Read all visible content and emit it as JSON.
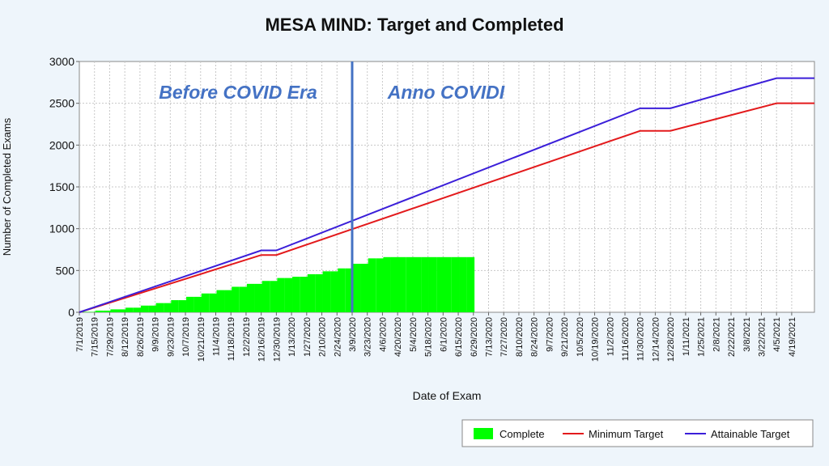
{
  "chart_data": {
    "type": "bar",
    "title": "MESA MIND: Target and Completed",
    "xlabel": "Date of Exam",
    "ylabel": "Number of Completed Exams",
    "ylim": [
      0,
      3000
    ],
    "yticks": [
      0,
      500,
      1000,
      1500,
      2000,
      2500,
      3000
    ],
    "xlim": [
      "2019-07-01",
      "2021-05-10"
    ],
    "categories": [
      "7/1/2019",
      "7/15/2019",
      "7/29/2019",
      "8/12/2019",
      "8/26/2019",
      "9/9/2019",
      "9/23/2019",
      "10/7/2019",
      "10/21/2019",
      "11/4/2019",
      "11/18/2019",
      "12/2/2019",
      "12/16/2019",
      "12/30/2019",
      "1/13/2020",
      "1/27/2020",
      "2/10/2020",
      "2/24/2020",
      "3/9/2020",
      "3/23/2020",
      "4/6/2020",
      "4/20/2020",
      "5/4/2020",
      "5/18/2020",
      "6/1/2020",
      "6/15/2020",
      "6/29/2020",
      "7/13/2020",
      "7/27/2020",
      "8/10/2020",
      "8/24/2020",
      "9/7/2020",
      "9/21/2020",
      "10/5/2020",
      "10/19/2020",
      "11/2/2020",
      "11/16/2020",
      "11/30/2020",
      "12/14/2020",
      "12/28/2020",
      "1/11/2021",
      "1/25/2021",
      "2/8/2021",
      "2/22/2021",
      "3/8/2021",
      "3/22/2021",
      "4/5/2021",
      "4/19/2021"
    ],
    "grid": true,
    "legend_position": "bottom-right",
    "series": [
      {
        "name": "Complete",
        "type": "bar",
        "color": "#00ff00",
        "x": [
          "7/1/2019",
          "7/15/2019",
          "7/29/2019",
          "8/12/2019",
          "8/26/2019",
          "9/9/2019",
          "9/23/2019",
          "10/7/2019",
          "10/21/2019",
          "11/4/2019",
          "11/18/2019",
          "12/2/2019",
          "12/16/2019",
          "12/30/2019",
          "1/13/2020",
          "1/27/2020",
          "2/10/2020",
          "2/24/2020",
          "3/9/2020",
          "3/23/2020",
          "4/6/2020",
          "4/20/2020",
          "5/4/2020",
          "5/18/2020",
          "6/1/2020",
          "6/15/2020"
        ],
        "values": [
          5,
          20,
          35,
          55,
          80,
          110,
          145,
          185,
          225,
          265,
          305,
          340,
          375,
          410,
          425,
          455,
          490,
          525,
          580,
          645,
          660,
          660,
          660,
          660,
          660,
          660
        ]
      },
      {
        "name": "Minimum Target",
        "type": "line",
        "color": "#e31a1c",
        "x": [
          "7/1/2019",
          "12/16/2019",
          "12/30/2019",
          "11/30/2020",
          "12/28/2020",
          "4/5/2021",
          "5/10/2021"
        ],
        "values": [
          0,
          685,
          685,
          2170,
          2170,
          2500,
          2500
        ]
      },
      {
        "name": "Attainable Target",
        "type": "line",
        "color": "#3b1fd9",
        "x": [
          "7/1/2019",
          "12/16/2019",
          "12/30/2019",
          "11/30/2020",
          "12/28/2020",
          "4/5/2021",
          "5/10/2021"
        ],
        "values": [
          0,
          740,
          740,
          2440,
          2440,
          2800,
          2800
        ]
      }
    ],
    "annotations": [
      {
        "text": "Before COVID Era",
        "color": "#4472c4"
      },
      {
        "text": "Anno COVIDI",
        "color": "#4472c4"
      }
    ],
    "marker_line": {
      "x": "3/9/2020",
      "color": "#4472c4"
    }
  }
}
